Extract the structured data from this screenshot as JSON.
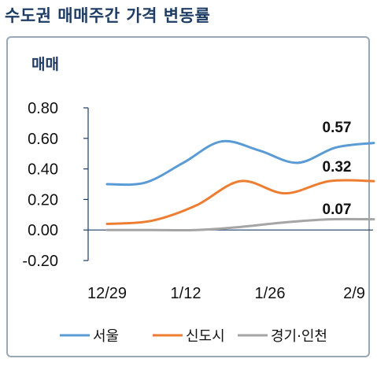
{
  "title": "수도권 매매주간 가격 변동률",
  "chart_data": {
    "type": "line",
    "subtitle": "매매",
    "xlabel": "",
    "ylabel": "",
    "x_ticks": [
      "12/29",
      "1/12",
      "1/26",
      "2/9"
    ],
    "y_ticks": [
      "0.80",
      "0.60",
      "0.40",
      "0.20",
      "0.00",
      "-0.20"
    ],
    "ylim": [
      -0.2,
      0.8
    ],
    "grid": false,
    "legend_position": "bottom",
    "series": [
      {
        "name": "서울",
        "color": "#5b9bd5",
        "points": [
          [
            0,
            0.3
          ],
          [
            1,
            0.31
          ],
          [
            2,
            0.44
          ],
          [
            3,
            0.58
          ],
          [
            4,
            0.52
          ],
          [
            5,
            0.44
          ],
          [
            6,
            0.54
          ],
          [
            7,
            0.57
          ]
        ],
        "end_label": "0.57"
      },
      {
        "name": "신도시",
        "color": "#ed7d31",
        "points": [
          [
            0,
            0.04
          ],
          [
            1,
            0.06
          ],
          [
            2,
            0.16
          ],
          [
            3,
            0.32
          ],
          [
            4,
            0.24
          ],
          [
            5,
            0.32
          ],
          [
            6,
            0.32
          ]
        ],
        "end_label": "0.32"
      },
      {
        "name": "경기·인천",
        "color": "#a5a5a5",
        "points": [
          [
            0,
            0.0
          ],
          [
            1,
            0.0
          ],
          [
            2,
            0.0
          ],
          [
            3,
            0.02
          ],
          [
            4,
            0.05
          ],
          [
            5,
            0.07
          ],
          [
            6,
            0.07
          ]
        ],
        "end_label": "0.07"
      }
    ]
  }
}
